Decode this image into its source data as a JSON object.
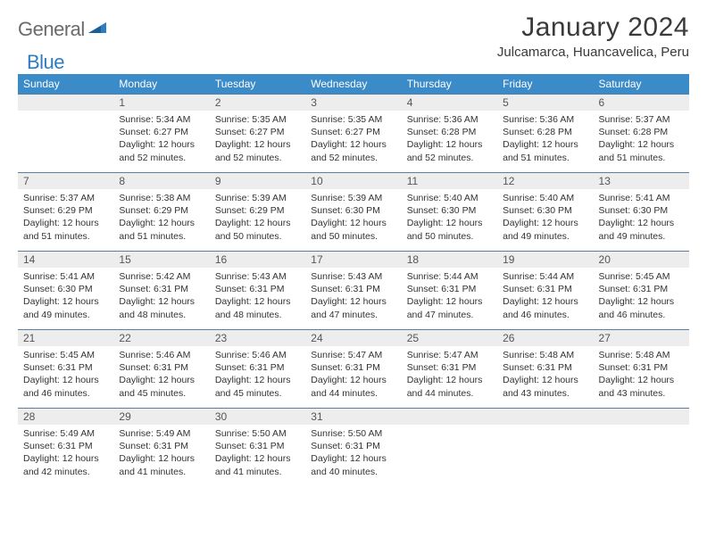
{
  "logo": {
    "part1": "General",
    "part2": "Blue"
  },
  "title": "January 2024",
  "location": "Julcamarca, Huancavelica, Peru",
  "colors": {
    "header_bg": "#3b8bc9",
    "header_text": "#ffffff",
    "daynum_bg": "#ededed",
    "daynum_border": "#5a7ea0",
    "logo_gray": "#6b6b6b",
    "logo_blue": "#2e7cc1",
    "text": "#333333"
  },
  "weekdays": [
    "Sunday",
    "Monday",
    "Tuesday",
    "Wednesday",
    "Thursday",
    "Friday",
    "Saturday"
  ],
  "start_offset": 1,
  "days": [
    {
      "n": 1,
      "sunrise": "5:34 AM",
      "sunset": "6:27 PM",
      "daylight": "12 hours and 52 minutes."
    },
    {
      "n": 2,
      "sunrise": "5:35 AM",
      "sunset": "6:27 PM",
      "daylight": "12 hours and 52 minutes."
    },
    {
      "n": 3,
      "sunrise": "5:35 AM",
      "sunset": "6:27 PM",
      "daylight": "12 hours and 52 minutes."
    },
    {
      "n": 4,
      "sunrise": "5:36 AM",
      "sunset": "6:28 PM",
      "daylight": "12 hours and 52 minutes."
    },
    {
      "n": 5,
      "sunrise": "5:36 AM",
      "sunset": "6:28 PM",
      "daylight": "12 hours and 51 minutes."
    },
    {
      "n": 6,
      "sunrise": "5:37 AM",
      "sunset": "6:28 PM",
      "daylight": "12 hours and 51 minutes."
    },
    {
      "n": 7,
      "sunrise": "5:37 AM",
      "sunset": "6:29 PM",
      "daylight": "12 hours and 51 minutes."
    },
    {
      "n": 8,
      "sunrise": "5:38 AM",
      "sunset": "6:29 PM",
      "daylight": "12 hours and 51 minutes."
    },
    {
      "n": 9,
      "sunrise": "5:39 AM",
      "sunset": "6:29 PM",
      "daylight": "12 hours and 50 minutes."
    },
    {
      "n": 10,
      "sunrise": "5:39 AM",
      "sunset": "6:30 PM",
      "daylight": "12 hours and 50 minutes."
    },
    {
      "n": 11,
      "sunrise": "5:40 AM",
      "sunset": "6:30 PM",
      "daylight": "12 hours and 50 minutes."
    },
    {
      "n": 12,
      "sunrise": "5:40 AM",
      "sunset": "6:30 PM",
      "daylight": "12 hours and 49 minutes."
    },
    {
      "n": 13,
      "sunrise": "5:41 AM",
      "sunset": "6:30 PM",
      "daylight": "12 hours and 49 minutes."
    },
    {
      "n": 14,
      "sunrise": "5:41 AM",
      "sunset": "6:30 PM",
      "daylight": "12 hours and 49 minutes."
    },
    {
      "n": 15,
      "sunrise": "5:42 AM",
      "sunset": "6:31 PM",
      "daylight": "12 hours and 48 minutes."
    },
    {
      "n": 16,
      "sunrise": "5:43 AM",
      "sunset": "6:31 PM",
      "daylight": "12 hours and 48 minutes."
    },
    {
      "n": 17,
      "sunrise": "5:43 AM",
      "sunset": "6:31 PM",
      "daylight": "12 hours and 47 minutes."
    },
    {
      "n": 18,
      "sunrise": "5:44 AM",
      "sunset": "6:31 PM",
      "daylight": "12 hours and 47 minutes."
    },
    {
      "n": 19,
      "sunrise": "5:44 AM",
      "sunset": "6:31 PM",
      "daylight": "12 hours and 46 minutes."
    },
    {
      "n": 20,
      "sunrise": "5:45 AM",
      "sunset": "6:31 PM",
      "daylight": "12 hours and 46 minutes."
    },
    {
      "n": 21,
      "sunrise": "5:45 AM",
      "sunset": "6:31 PM",
      "daylight": "12 hours and 46 minutes."
    },
    {
      "n": 22,
      "sunrise": "5:46 AM",
      "sunset": "6:31 PM",
      "daylight": "12 hours and 45 minutes."
    },
    {
      "n": 23,
      "sunrise": "5:46 AM",
      "sunset": "6:31 PM",
      "daylight": "12 hours and 45 minutes."
    },
    {
      "n": 24,
      "sunrise": "5:47 AM",
      "sunset": "6:31 PM",
      "daylight": "12 hours and 44 minutes."
    },
    {
      "n": 25,
      "sunrise": "5:47 AM",
      "sunset": "6:31 PM",
      "daylight": "12 hours and 44 minutes."
    },
    {
      "n": 26,
      "sunrise": "5:48 AM",
      "sunset": "6:31 PM",
      "daylight": "12 hours and 43 minutes."
    },
    {
      "n": 27,
      "sunrise": "5:48 AM",
      "sunset": "6:31 PM",
      "daylight": "12 hours and 43 minutes."
    },
    {
      "n": 28,
      "sunrise": "5:49 AM",
      "sunset": "6:31 PM",
      "daylight": "12 hours and 42 minutes."
    },
    {
      "n": 29,
      "sunrise": "5:49 AM",
      "sunset": "6:31 PM",
      "daylight": "12 hours and 41 minutes."
    },
    {
      "n": 30,
      "sunrise": "5:50 AM",
      "sunset": "6:31 PM",
      "daylight": "12 hours and 41 minutes."
    },
    {
      "n": 31,
      "sunrise": "5:50 AM",
      "sunset": "6:31 PM",
      "daylight": "12 hours and 40 minutes."
    }
  ],
  "labels": {
    "sunrise": "Sunrise:",
    "sunset": "Sunset:",
    "daylight": "Daylight:"
  }
}
